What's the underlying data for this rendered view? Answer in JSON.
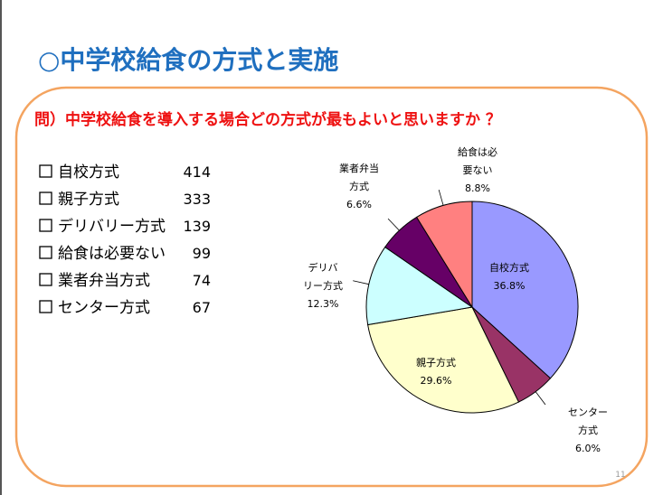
{
  "title": "○中学校給食の方式と実施",
  "question": "問）中学校給食を導入する場合どの方式が最もよいと思いますか ？",
  "list": [
    {
      "name": "自校方式",
      "count": 414
    },
    {
      "name": "親子方式",
      "count": 333
    },
    {
      "name": "デリバリー方式",
      "count": 139
    },
    {
      "name": "給食は必要ない",
      "count": 99
    },
    {
      "name": "業者弁当方式",
      "count": 74
    },
    {
      "name": "センター方式",
      "count": 67
    }
  ],
  "page_number": "11",
  "chart_data": {
    "type": "pie",
    "categories": [
      [
        "自校方式"
      ],
      [
        "センター",
        "方式"
      ],
      [
        "親子方式"
      ],
      [
        "デリバ",
        "リー方式"
      ],
      [
        "業者弁当",
        "方式"
      ],
      [
        "給食は必",
        "要ない"
      ]
    ],
    "values": [
      36.8,
      6.0,
      29.6,
      12.3,
      6.6,
      8.8
    ],
    "value_labels": [
      "36.8%",
      "6.0%",
      "29.6%",
      "12.3%",
      "6.6%",
      "8.8%"
    ],
    "colors": [
      "#9999ff",
      "#993366",
      "#ffffcc",
      "#ccffff",
      "#660066",
      "#ff8080"
    ]
  }
}
